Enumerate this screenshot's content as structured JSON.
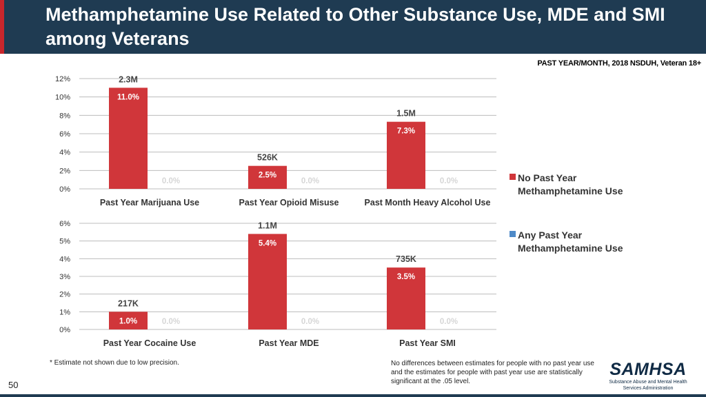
{
  "header": {
    "title": "Methamphetamine Use Related to Other Substance Use, MDE and SMI among Veterans",
    "subtitle": "PAST YEAR/MONTH, 2018 NSDUH, Veteran 18+"
  },
  "colors": {
    "no_use": "#d0363a",
    "any_use": "#4e8ac8",
    "header_bg": "#1f3b52",
    "grid": "#bcbcbc"
  },
  "legend": {
    "no_use": "No Past Year Methamphetamine Use",
    "any_use": "Any Past Year Methamphetamine Use"
  },
  "chart_data": [
    {
      "type": "bar",
      "title": "",
      "categories": [
        "Past Year Marijuana Use",
        "Past Year Opioid Misuse",
        "Past Month Heavy Alcohol Use"
      ],
      "ylim": [
        0,
        12
      ],
      "yticks": [
        0,
        2,
        4,
        6,
        8,
        10,
        12
      ],
      "ytick_labels": [
        "0%",
        "2%",
        "4%",
        "6%",
        "8%",
        "10%",
        "12%"
      ],
      "series": [
        {
          "name": "No Past Year Methamphetamine Use",
          "values": [
            11.0,
            2.5,
            7.3
          ],
          "value_labels": [
            "11.0%",
            "2.5%",
            "7.3%"
          ],
          "count_labels": [
            "2.3M",
            "526K",
            "1.5M"
          ]
        },
        {
          "name": "Any Past Year Methamphetamine Use",
          "values": [
            0,
            0,
            0
          ],
          "value_labels": [
            "0.0%",
            "0.0%",
            "0.0%"
          ]
        }
      ]
    },
    {
      "type": "bar",
      "title": "",
      "categories": [
        "Past Year Cocaine Use",
        "Past Year MDE",
        "Past Year SMI"
      ],
      "ylim": [
        0,
        6
      ],
      "yticks": [
        0,
        1,
        2,
        3,
        4,
        5,
        6
      ],
      "ytick_labels": [
        "0%",
        "1%",
        "2%",
        "3%",
        "4%",
        "5%",
        "6%"
      ],
      "series": [
        {
          "name": "No Past Year Methamphetamine Use",
          "values": [
            1.0,
            5.4,
            3.5
          ],
          "value_labels": [
            "1.0%",
            "5.4%",
            "3.5%"
          ],
          "count_labels": [
            "217K",
            "1.1M",
            "735K"
          ]
        },
        {
          "name": "Any Past Year Methamphetamine Use",
          "values": [
            0,
            0,
            0
          ],
          "value_labels": [
            "0.0%",
            "0.0%",
            "0.0%"
          ]
        }
      ]
    }
  ],
  "footnote": "* Estimate not shown due to low precision.",
  "note": "No differences between estimates for people with no past year use and the estimates for people with past year use are statistically significant at the .05 level.",
  "page_number": "50",
  "logo": {
    "name": "SAMHSA",
    "subtitle": "Substance Abuse and Mental Health Services Administration"
  }
}
